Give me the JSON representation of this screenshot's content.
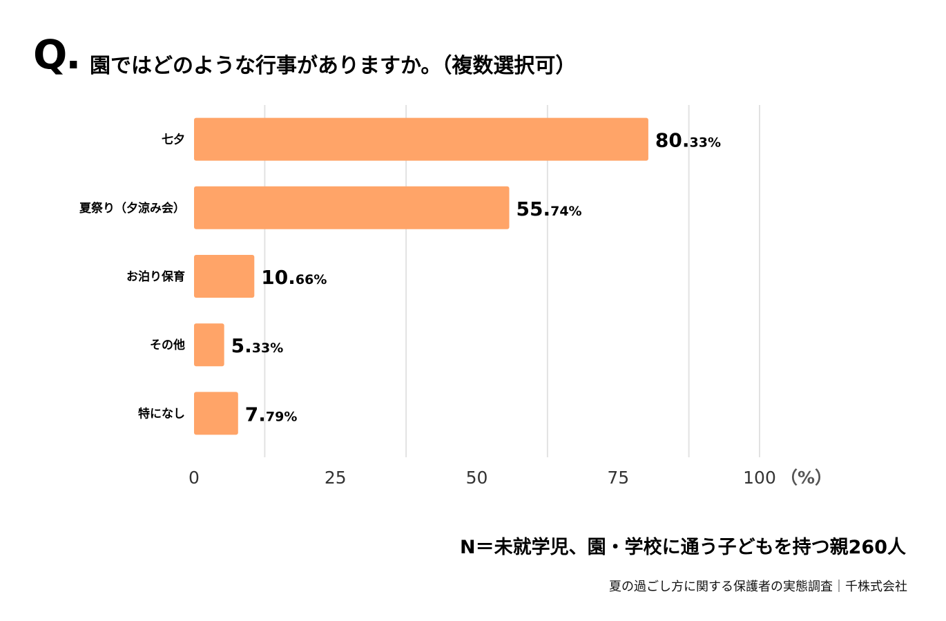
{
  "header": {
    "q_mark": "Q.",
    "question": "園ではどのような行事がありますか。（複数選択可）"
  },
  "chart_data": {
    "type": "bar",
    "orientation": "horizontal",
    "categories": [
      "七夕",
      "夏祭り（夕涼み会）",
      "お泊り保育",
      "その他",
      "特になし"
    ],
    "values": [
      80.33,
      55.74,
      10.66,
      5.33,
      7.79
    ],
    "value_labels": [
      {
        "main": "80.",
        "decimal": "33%"
      },
      {
        "main": "55.",
        "decimal": "74%"
      },
      {
        "main": "10.",
        "decimal": "66%"
      },
      {
        "main": "5.",
        "decimal": "33%"
      },
      {
        "main": "7.",
        "decimal": "79%"
      }
    ],
    "xlim": [
      0,
      100
    ],
    "xticks": [
      0,
      25,
      50,
      75,
      100
    ],
    "x_unit": "（%）",
    "grid": true,
    "bar_color": "#FFA468",
    "grid_color": "#E2E2E2"
  },
  "footer": {
    "sample": "N＝未就学児、園・学校に通う子どもを持つ親260人",
    "source": "夏の過ごし方に関する保護者の実態調査｜千株式会社"
  }
}
